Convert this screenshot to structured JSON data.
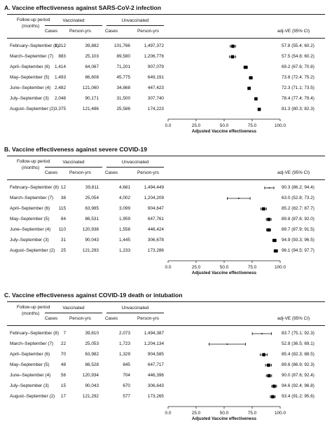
{
  "headers": {
    "period_line1": "Follow-up period",
    "period_line2": "(months)",
    "vaccinated": "Vaccinated",
    "unvaccinated": "Unvaccinated",
    "cases": "Cases",
    "person_yrs": "Person-yrs",
    "adj_ve": "adj-VE (95% CI)"
  },
  "chart_data": [
    {
      "type": "forest",
      "title": "A. Vaccine effectiveness against SARS-CoV-2 infection",
      "xlabel": "Adjusted Vaccine effectiveness",
      "xlim": [
        0,
        100
      ],
      "xticks": [
        "0.0",
        "25.0",
        "50.0",
        "75.0",
        "100.0"
      ],
      "rows": [
        {
          "period": "February–September (8)",
          "vac_cases": "1,312",
          "vac_py": "39,882",
          "unvac_cases": "101,766",
          "unvac_py": "1,497,372",
          "ve": 57.8,
          "lo": 55.4,
          "hi": 60.2,
          "ve_text": "57.8 (55.4; 60.2)"
        },
        {
          "period": "March–September (7)",
          "vac_cases": "883",
          "vac_py": "25,103",
          "unvac_cases": "89,580",
          "unvac_py": "1,206,776",
          "ve": 57.5,
          "lo": 54.8,
          "hi": 60.2,
          "ve_text": "57.5 (54.8; 60.2)"
        },
        {
          "period": "April–September (6)",
          "vac_cases": "1,414",
          "vac_py": "64,067",
          "unvac_cases": "71,201",
          "unvac_py": "907,079",
          "ve": 69.2,
          "lo": 67.6,
          "hi": 70.8,
          "ve_text": "69.2 (67.6; 70.8)"
        },
        {
          "period": "May–September (5)",
          "vac_cases": "1,493",
          "vac_py": "86,608",
          "unvac_cases": "45,775",
          "unvac_py": "649,191",
          "ve": 73.8,
          "lo": 72.4,
          "hi": 75.2,
          "ve_text": "73.8 (72.4; 75.2)"
        },
        {
          "period": "June–September (4)",
          "vac_cases": "2,482",
          "vac_py": "121,060",
          "unvac_cases": "34,868",
          "unvac_py": "447,423",
          "ve": 72.3,
          "lo": 71.1,
          "hi": 73.5,
          "ve_text": "72.3 (71.1; 73.5)"
        },
        {
          "period": "July–September (3)",
          "vac_cases": "2,048",
          "vac_py": "90,171",
          "unvac_cases": "31,500",
          "unvac_py": "307,740",
          "ve": 78.4,
          "lo": 77.4,
          "hi": 79.4,
          "ve_text": "78.4 (77.4; 79.4)"
        },
        {
          "period": "August–September (2)",
          "vac_cases": "3,375",
          "vac_py": "121,486",
          "unvac_cases": "25,586",
          "unvac_py": "174,223",
          "ve": 81.3,
          "lo": 80.3,
          "hi": 82.3,
          "ve_text": "81.3 (80.3; 82.3)"
        }
      ]
    },
    {
      "type": "forest",
      "title": "B. Vaccine effectiveness against severe COVID-19",
      "xlabel": "Adjusted Vaccine effectiveness",
      "xlim": [
        0,
        100
      ],
      "xticks": [
        "0.0",
        "25.0",
        "50.0",
        "75.0",
        "100.0"
      ],
      "rows": [
        {
          "period": "February–September (8)",
          "vac_cases": "12",
          "vac_py": "39,811",
          "unvac_cases": "4,681",
          "unvac_py": "1,494,449",
          "ve": 90.3,
          "lo": 86.2,
          "hi": 94.4,
          "ve_text": "90.3 (86.2; 94.4)"
        },
        {
          "period": "March–September (7)",
          "vac_cases": "38",
          "vac_py": "25,054",
          "unvac_cases": "4,002",
          "unvac_py": "1,204,209",
          "ve": 63.0,
          "lo": 52.8,
          "hi": 73.2,
          "ve_text": "63.0 (52.8; 73.2)"
        },
        {
          "period": "April–September (6)",
          "vac_cases": "115",
          "vac_py": "63,985",
          "unvac_cases": "3,099",
          "unvac_py": "904,647",
          "ve": 85.2,
          "lo": 82.7,
          "hi": 87.7,
          "ve_text": "85.2 (82.7; 87.7)"
        },
        {
          "period": "May–September (5)",
          "vac_cases": "84",
          "vac_py": "86,531",
          "unvac_cases": "1,959",
          "unvac_py": "647,761",
          "ve": 89.8,
          "lo": 87.6,
          "hi": 92.0,
          "ve_text": "89.8 (87.6; 92.0)"
        },
        {
          "period": "June–September (4)",
          "vac_cases": "110",
          "vac_py": "120,938",
          "unvac_cases": "1,558",
          "unvac_py": "446,424",
          "ve": 89.7,
          "lo": 87.9,
          "hi": 91.5,
          "ve_text": "89.7 (87.9; 91.5)"
        },
        {
          "period": "July–September (3)",
          "vac_cases": "31",
          "vac_py": "90,043",
          "unvac_cases": "1,445",
          "unvac_py": "306,678",
          "ve": 94.9,
          "lo": 93.3,
          "hi": 96.5,
          "ve_text": "94.9 (93.3; 96.5)"
        },
        {
          "period": "August–September (2)",
          "vac_cases": "25",
          "vac_py": "121,293",
          "unvac_cases": "1,233",
          "unvac_py": "173,286",
          "ve": 96.1,
          "lo": 94.5,
          "hi": 97.7,
          "ve_text": "96.1 (94.5; 97.7)"
        }
      ]
    },
    {
      "type": "forest",
      "title": "C. Vaccine effectiveness against COVID-19 death or intubation",
      "xlabel": "Adjusted Vaccine effectiveness",
      "xlim": [
        0,
        100
      ],
      "xticks": [
        "0.0",
        "25.0",
        "50.0",
        "75.0",
        "100.0"
      ],
      "rows": [
        {
          "period": "February–September (8)",
          "vac_cases": "7",
          "vac_py": "39,810",
          "unvac_cases": "2,073",
          "unvac_py": "1,494,387",
          "ve": 83.7,
          "lo": 75.1,
          "hi": 92.3,
          "ve_text": "83.7 (75.1; 92.3)"
        },
        {
          "period": "March–September (7)",
          "vac_cases": "22",
          "vac_py": "25,053",
          "unvac_cases": "1,723",
          "unvac_py": "1,204,134",
          "ve": 52.8,
          "lo": 36.5,
          "hi": 69.1,
          "ve_text": "52.8 (36.5; 69.1)"
        },
        {
          "period": "April–September (6)",
          "vac_cases": "70",
          "vac_py": "63,982",
          "unvac_cases": "1,329",
          "unvac_py": "904,585",
          "ve": 85.4,
          "lo": 82.3,
          "hi": 88.5,
          "ve_text": "85.4 (82.3; 88.5)"
        },
        {
          "period": "May–September (5)",
          "vac_cases": "48",
          "vac_py": "86,528",
          "unvac_cases": "845",
          "unvac_py": "647,717",
          "ve": 89.6,
          "lo": 86.9,
          "hi": 92.3,
          "ve_text": "89.6 (86.9; 92.3)"
        },
        {
          "period": "June–September (4)",
          "vac_cases": "56",
          "vac_py": "120,934",
          "unvac_cases": "704",
          "unvac_py": "446,396",
          "ve": 90.0,
          "lo": 87.6,
          "hi": 92.4,
          "ve_text": "90.0 (87.6; 92.4)"
        },
        {
          "period": "July–September (3)",
          "vac_cases": "15",
          "vac_py": "90,043",
          "unvac_cases": "670",
          "unvac_py": "306,643",
          "ve": 94.6,
          "lo": 92.4,
          "hi": 96.8,
          "ve_text": "94.6 (92.4; 96.8)"
        },
        {
          "period": "August–September (2)",
          "vac_cases": "17",
          "vac_py": "121,292",
          "unvac_cases": "577",
          "unvac_py": "173,265",
          "ve": 93.4,
          "lo": 91.2,
          "hi": 95.6,
          "ve_text": "93.4 (91.2; 95.6)"
        }
      ]
    }
  ]
}
